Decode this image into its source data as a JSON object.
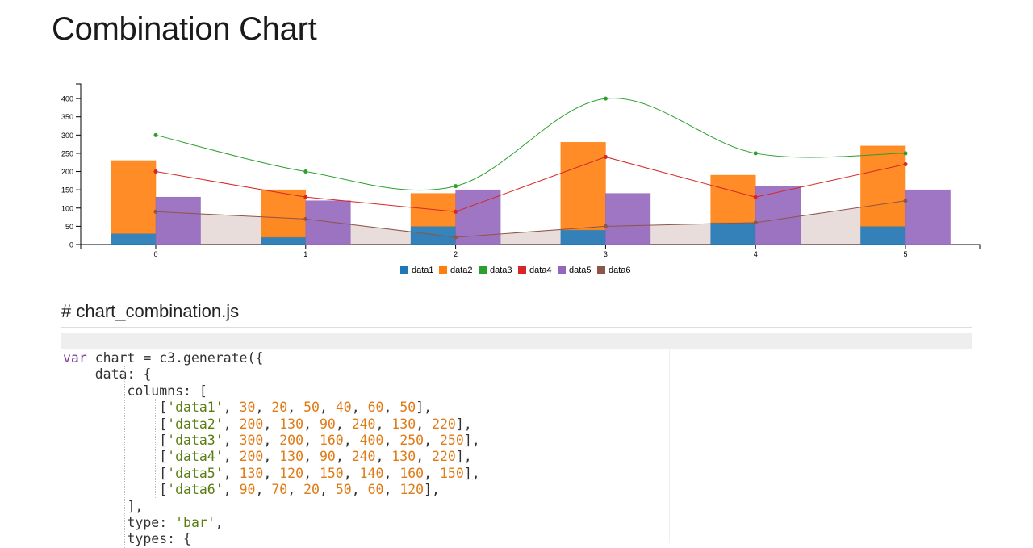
{
  "page": {
    "title": "Combination Chart",
    "section_heading": "# chart_combination.js"
  },
  "chart_data": {
    "type": "bar",
    "combination": true,
    "x": [
      0,
      1,
      2,
      3,
      4,
      5
    ],
    "ylim": [
      0,
      440
    ],
    "yticks": [
      0,
      50,
      100,
      150,
      200,
      250,
      300,
      350,
      400
    ],
    "grid": false,
    "legend_position": "bottom",
    "stacked_groups": [
      [
        "data1",
        "data2"
      ]
    ],
    "series": [
      {
        "name": "data1",
        "type": "bar",
        "color": "#1f77b4",
        "values": [
          30,
          20,
          50,
          40,
          60,
          50
        ]
      },
      {
        "name": "data2",
        "type": "bar",
        "color": "#ff7f0e",
        "values": [
          200,
          130,
          90,
          240,
          130,
          220
        ]
      },
      {
        "name": "data3",
        "type": "spline",
        "color": "#2ca02c",
        "values": [
          300,
          200,
          160,
          400,
          250,
          250
        ]
      },
      {
        "name": "data4",
        "type": "line",
        "color": "#d62728",
        "values": [
          200,
          130,
          90,
          240,
          130,
          220
        ]
      },
      {
        "name": "data5",
        "type": "bar",
        "color": "#9467bd",
        "values": [
          130,
          120,
          150,
          140,
          160,
          150
        ]
      },
      {
        "name": "data6",
        "type": "area",
        "color": "#8c564b",
        "values": [
          90,
          70,
          20,
          50,
          60,
          120
        ]
      }
    ]
  },
  "code": {
    "language": "javascript",
    "lines": [
      [
        [
          "kw",
          "var"
        ],
        [
          "p",
          " chart = c3.generate({"
        ]
      ],
      [
        [
          "p",
          "    data: {"
        ]
      ],
      [
        [
          "p",
          "        columns: ["
        ]
      ],
      [
        [
          "p",
          "            ["
        ],
        [
          "s",
          "'data1'"
        ],
        [
          "p",
          ", "
        ],
        [
          "n",
          "30"
        ],
        [
          "p",
          ", "
        ],
        [
          "n",
          "20"
        ],
        [
          "p",
          ", "
        ],
        [
          "n",
          "50"
        ],
        [
          "p",
          ", "
        ],
        [
          "n",
          "40"
        ],
        [
          "p",
          ", "
        ],
        [
          "n",
          "60"
        ],
        [
          "p",
          ", "
        ],
        [
          "n",
          "50"
        ],
        [
          "p",
          "],"
        ]
      ],
      [
        [
          "p",
          "            ["
        ],
        [
          "s",
          "'data2'"
        ],
        [
          "p",
          ", "
        ],
        [
          "n",
          "200"
        ],
        [
          "p",
          ", "
        ],
        [
          "n",
          "130"
        ],
        [
          "p",
          ", "
        ],
        [
          "n",
          "90"
        ],
        [
          "p",
          ", "
        ],
        [
          "n",
          "240"
        ],
        [
          "p",
          ", "
        ],
        [
          "n",
          "130"
        ],
        [
          "p",
          ", "
        ],
        [
          "n",
          "220"
        ],
        [
          "p",
          "],"
        ]
      ],
      [
        [
          "p",
          "            ["
        ],
        [
          "s",
          "'data3'"
        ],
        [
          "p",
          ", "
        ],
        [
          "n",
          "300"
        ],
        [
          "p",
          ", "
        ],
        [
          "n",
          "200"
        ],
        [
          "p",
          ", "
        ],
        [
          "n",
          "160"
        ],
        [
          "p",
          ", "
        ],
        [
          "n",
          "400"
        ],
        [
          "p",
          ", "
        ],
        [
          "n",
          "250"
        ],
        [
          "p",
          ", "
        ],
        [
          "n",
          "250"
        ],
        [
          "p",
          "],"
        ]
      ],
      [
        [
          "p",
          "            ["
        ],
        [
          "s",
          "'data4'"
        ],
        [
          "p",
          ", "
        ],
        [
          "n",
          "200"
        ],
        [
          "p",
          ", "
        ],
        [
          "n",
          "130"
        ],
        [
          "p",
          ", "
        ],
        [
          "n",
          "90"
        ],
        [
          "p",
          ", "
        ],
        [
          "n",
          "240"
        ],
        [
          "p",
          ", "
        ],
        [
          "n",
          "130"
        ],
        [
          "p",
          ", "
        ],
        [
          "n",
          "220"
        ],
        [
          "p",
          "],"
        ]
      ],
      [
        [
          "p",
          "            ["
        ],
        [
          "s",
          "'data5'"
        ],
        [
          "p",
          ", "
        ],
        [
          "n",
          "130"
        ],
        [
          "p",
          ", "
        ],
        [
          "n",
          "120"
        ],
        [
          "p",
          ", "
        ],
        [
          "n",
          "150"
        ],
        [
          "p",
          ", "
        ],
        [
          "n",
          "140"
        ],
        [
          "p",
          ", "
        ],
        [
          "n",
          "160"
        ],
        [
          "p",
          ", "
        ],
        [
          "n",
          "150"
        ],
        [
          "p",
          "],"
        ]
      ],
      [
        [
          "p",
          "            ["
        ],
        [
          "s",
          "'data6'"
        ],
        [
          "p",
          ", "
        ],
        [
          "n",
          "90"
        ],
        [
          "p",
          ", "
        ],
        [
          "n",
          "70"
        ],
        [
          "p",
          ", "
        ],
        [
          "n",
          "20"
        ],
        [
          "p",
          ", "
        ],
        [
          "n",
          "50"
        ],
        [
          "p",
          ", "
        ],
        [
          "n",
          "60"
        ],
        [
          "p",
          ", "
        ],
        [
          "n",
          "120"
        ],
        [
          "p",
          "],"
        ]
      ],
      [
        [
          "p",
          "        ],"
        ]
      ],
      [
        [
          "p",
          "        type: "
        ],
        [
          "s",
          "'bar'"
        ],
        [
          "p",
          ","
        ]
      ],
      [
        [
          "p",
          "        types: {"
        ]
      ]
    ]
  }
}
